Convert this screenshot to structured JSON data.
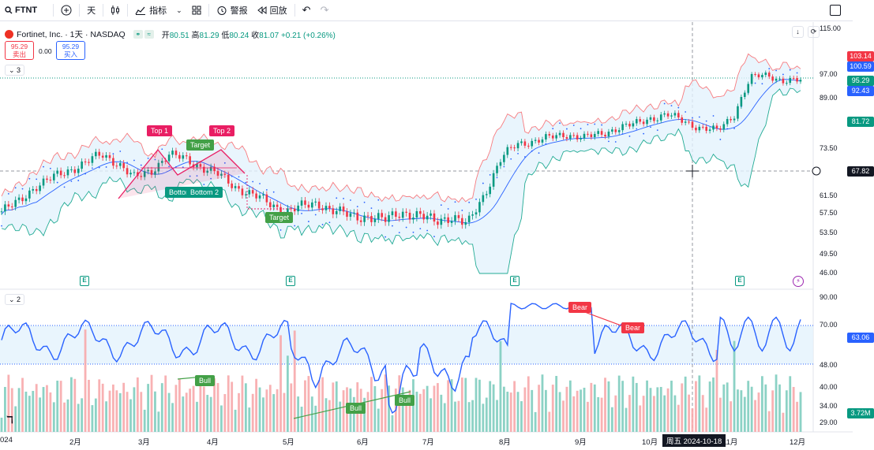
{
  "toolbar": {
    "symbol": "FTNT",
    "interval": "天",
    "indicators": "指标",
    "alert": "警报",
    "replay": "回放"
  },
  "legend": {
    "title": "Fortinet, Inc. · 1天 · NASDAQ",
    "open_label": "开",
    "open": "80.51",
    "high_label": "高",
    "high": "81.29",
    "low_label": "低",
    "low": "80.24",
    "close_label": "收",
    "close": "81.07",
    "change": "+0.21 (+0.26%)",
    "sell_price": "95.29",
    "sell_label": "卖出",
    "spread": "0.00",
    "buy_price": "95.29",
    "buy_label": "买入",
    "pane1": "3",
    "pane2": "2"
  },
  "colors": {
    "up": "#089981",
    "down": "#f23645",
    "blue": "#2962ff",
    "pink": "#e91e63",
    "green": "#43a047",
    "band": "#e3f2fd"
  },
  "price_axis": {
    "ticks": [
      "115.00",
      "97.00",
      "89.00",
      "73.50",
      "61.50",
      "57.50",
      "53.50",
      "49.50",
      "46.00"
    ],
    "badges": [
      {
        "v": "103.14",
        "c": "#f23645"
      },
      {
        "v": "100.59",
        "c": "#2962ff"
      },
      {
        "v": "95.29",
        "c": "#089981"
      },
      {
        "v": "92.43",
        "c": "#2962ff"
      },
      {
        "v": "81.72",
        "c": "#089981"
      },
      {
        "v": "67.82",
        "c": "#131722"
      }
    ]
  },
  "osc_axis": {
    "ticks": [
      "90.00",
      "70.00",
      "48.00",
      "40.00",
      "34.00",
      "29.00"
    ],
    "badges": [
      {
        "v": "63.06",
        "c": "#2962ff"
      },
      {
        "v": "3.72M",
        "c": "#089981"
      }
    ]
  },
  "x_axis": {
    "labels": [
      "024",
      "2月",
      "3月",
      "4月",
      "5月",
      "6月",
      "7月",
      "8月",
      "9月",
      "10月",
      "11月",
      "12月"
    ],
    "crosshair": "周五 2024-10-18"
  },
  "annotations": {
    "top1": "Top 1",
    "top2": "Top 2",
    "target1": "Target",
    "target2": "Target",
    "bottom1": "Bottom 1",
    "bottom2": "Bottom 2",
    "bear1": "Bear",
    "bear2": "Bear",
    "bull1": "Bull",
    "bull2": "Bull",
    "bull3": "Bull",
    "earnings": "E"
  },
  "chart_data": {
    "type": "candlestick",
    "ylim": [
      46,
      115
    ],
    "note_series": [
      {
        "name": "close",
        "values": [
          58,
          60,
          64,
          66,
          68,
          70,
          72,
          70,
          66,
          68,
          72,
          71,
          69,
          67,
          64,
          62,
          60,
          58,
          59,
          60,
          58,
          57,
          57,
          56,
          58,
          57,
          56,
          57,
          55,
          62,
          71,
          75,
          76,
          77,
          78,
          77,
          78,
          80,
          81,
          83,
          84,
          82,
          80,
          79,
          84,
          96,
          97,
          95,
          95
        ]
      }
    ]
  }
}
